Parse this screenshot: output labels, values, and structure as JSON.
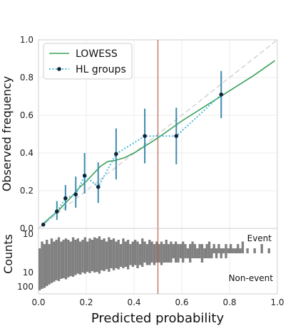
{
  "chart_data": [
    {
      "type": "line",
      "panel": "calibration",
      "xlim": [
        0,
        1
      ],
      "ylim": [
        0,
        1
      ],
      "ylabel": "Observed frequency",
      "yticks": [
        "0.0",
        "0.2",
        "0.4",
        "0.6",
        "0.8",
        "1.0"
      ],
      "grid": true,
      "legend_position": "top-left",
      "reference_line": {
        "x": [
          0,
          1
        ],
        "y": [
          0,
          1
        ],
        "color": "#d3d3d3"
      },
      "threshold_x": 0.5,
      "threshold_color": "#b5654f",
      "series": [
        {
          "name": "LOWESS",
          "color": "#3aa05a",
          "x": [
            0.02,
            0.05,
            0.08,
            0.11,
            0.14,
            0.17,
            0.2,
            0.23,
            0.26,
            0.29,
            0.32,
            0.36,
            0.4,
            0.45,
            0.5,
            0.55,
            0.6,
            0.7,
            0.8,
            0.9,
            0.99
          ],
          "y": [
            0.025,
            0.06,
            0.09,
            0.13,
            0.17,
            0.215,
            0.25,
            0.29,
            0.33,
            0.355,
            0.36,
            0.375,
            0.4,
            0.44,
            0.48,
            0.525,
            0.57,
            0.65,
            0.73,
            0.81,
            0.89
          ]
        },
        {
          "name": "HL groups",
          "color": "#4bbad8",
          "marker_color": "#10253a",
          "errorbar_color": "#3d8bb0",
          "x": [
            0.02,
            0.077,
            0.113,
            0.156,
            0.193,
            0.25,
            0.325,
            0.445,
            0.577,
            0.765
          ],
          "y": [
            0.02,
            0.09,
            0.16,
            0.18,
            0.28,
            0.22,
            0.395,
            0.49,
            0.49,
            0.71
          ],
          "err_low": [
            0.012,
            0.045,
            0.095,
            0.11,
            0.185,
            0.135,
            0.26,
            0.345,
            0.34,
            0.585
          ],
          "err_high": [
            0.028,
            0.145,
            0.23,
            0.275,
            0.4,
            0.35,
            0.53,
            0.635,
            0.64,
            0.835
          ]
        }
      ]
    },
    {
      "type": "bar",
      "panel": "counts",
      "ylabel": "Counts",
      "xlabel": "Predicted probability",
      "xlim": [
        0,
        1
      ],
      "xticks": [
        "0.0",
        "0.2",
        "0.4",
        "0.6",
        "0.8",
        "1.0"
      ],
      "yticks_upper": [
        "10"
      ],
      "yticks_lower": [
        "10",
        "100"
      ],
      "annotations": {
        "event": "Event",
        "non_event": "Non-event"
      },
      "bar_color": "#808080",
      "series": [
        {
          "name": "Event",
          "x": [
            0.005,
            0.015,
            0.025,
            0.035,
            0.045,
            0.055,
            0.065,
            0.075,
            0.085,
            0.095,
            0.105,
            0.115,
            0.125,
            0.135,
            0.145,
            0.155,
            0.165,
            0.175,
            0.185,
            0.195,
            0.205,
            0.215,
            0.225,
            0.235,
            0.245,
            0.255,
            0.265,
            0.275,
            0.285,
            0.295,
            0.305,
            0.315,
            0.325,
            0.335,
            0.345,
            0.355,
            0.365,
            0.375,
            0.385,
            0.395,
            0.405,
            0.415,
            0.425,
            0.435,
            0.445,
            0.455,
            0.465,
            0.475,
            0.485,
            0.495,
            0.505,
            0.515,
            0.525,
            0.535,
            0.545,
            0.555,
            0.565,
            0.575,
            0.585,
            0.595,
            0.605,
            0.615,
            0.625,
            0.635,
            0.645,
            0.655,
            0.665,
            0.675,
            0.685,
            0.695,
            0.705,
            0.715,
            0.725,
            0.735,
            0.745,
            0.755,
            0.765,
            0.775,
            0.785,
            0.795,
            0.805,
            0.815,
            0.825,
            0.835,
            0.845,
            0.855,
            0.875,
            0.905,
            0.935,
            0.965
          ],
          "values": [
            1,
            3,
            2,
            4,
            2,
            5,
            3,
            4,
            6,
            3,
            4,
            5,
            4,
            3,
            6,
            4,
            5,
            3,
            4,
            6,
            3,
            5,
            4,
            6,
            5,
            7,
            4,
            5,
            3,
            6,
            4,
            5,
            3,
            4,
            2,
            5,
            3,
            4,
            2,
            3,
            4,
            3,
            2,
            5,
            3,
            2,
            4,
            3,
            2,
            3,
            2,
            3,
            2,
            4,
            2,
            3,
            2,
            3,
            2,
            2,
            3,
            2,
            1,
            2,
            3,
            2,
            1,
            2,
            2,
            1,
            2,
            3,
            1,
            2,
            1,
            2,
            1,
            1,
            2,
            1,
            2,
            1,
            1,
            2,
            1,
            3,
            1,
            1,
            2,
            1
          ]
        },
        {
          "name": "Non-event",
          "x": [
            0.005,
            0.015,
            0.025,
            0.035,
            0.045,
            0.055,
            0.065,
            0.075,
            0.085,
            0.095,
            0.105,
            0.115,
            0.125,
            0.135,
            0.145,
            0.155,
            0.165,
            0.175,
            0.185,
            0.195,
            0.205,
            0.215,
            0.225,
            0.235,
            0.245,
            0.255,
            0.265,
            0.275,
            0.285,
            0.295,
            0.305,
            0.315,
            0.325,
            0.335,
            0.345,
            0.355,
            0.365,
            0.375,
            0.385,
            0.395,
            0.405,
            0.415,
            0.425,
            0.435,
            0.445,
            0.455,
            0.465,
            0.475,
            0.485,
            0.495,
            0.505,
            0.515,
            0.525,
            0.535,
            0.545,
            0.555,
            0.565,
            0.575,
            0.585,
            0.595,
            0.605,
            0.615,
            0.625,
            0.635,
            0.645,
            0.655,
            0.665,
            0.675,
            0.685,
            0.695,
            0.705,
            0.715,
            0.725,
            0.745,
            0.765,
            0.785
          ],
          "values": [
            180,
            140,
            120,
            90,
            70,
            55,
            45,
            35,
            40,
            28,
            25,
            30,
            22,
            18,
            20,
            15,
            12,
            14,
            10,
            12,
            9,
            11,
            8,
            10,
            9,
            12,
            7,
            8,
            6,
            9,
            5,
            7,
            5,
            6,
            4,
            5,
            4,
            6,
            3,
            4,
            3,
            5,
            3,
            4,
            2,
            3,
            3,
            2,
            3,
            2,
            2,
            3,
            2,
            2,
            2,
            2,
            1,
            2,
            2,
            1,
            2,
            1,
            1,
            2,
            1,
            1,
            1,
            1,
            2,
            1,
            1,
            1,
            1,
            1,
            1,
            1
          ]
        }
      ]
    }
  ]
}
